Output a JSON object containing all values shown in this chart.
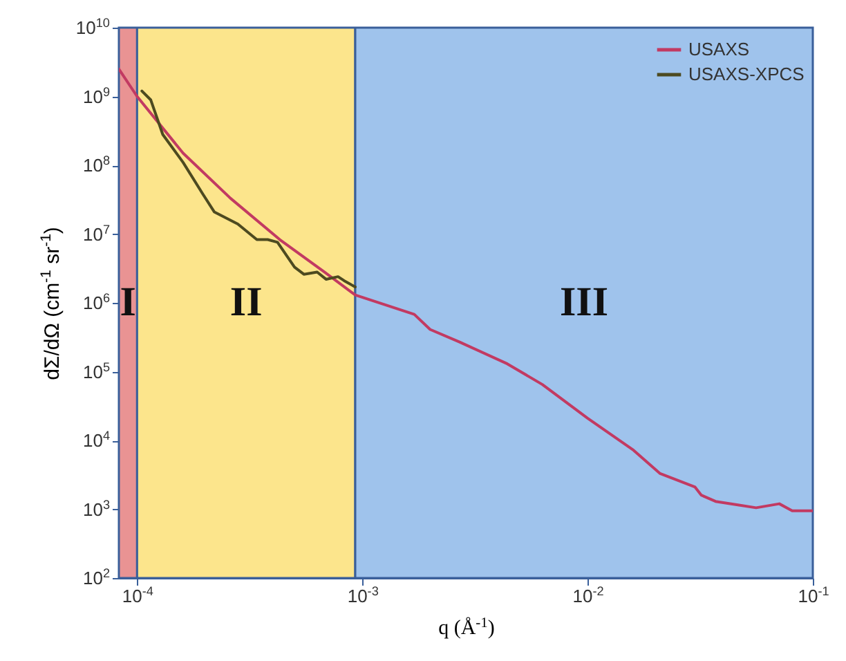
{
  "chart_data": {
    "type": "line",
    "xlabel": "q (Å$^{-1}$)",
    "ylabel": "dΣ/dΩ (cm$^{-1}$ sr$^{-1}$)",
    "log": "xy",
    "xlim": [
      8.3e-05,
      0.1
    ],
    "ylim": [
      100,
      10000000000
    ],
    "xticks": [
      {
        "value": 0.0001,
        "label": "10$^{-4}$"
      },
      {
        "value": 0.001,
        "label": "10$^{-3}$"
      },
      {
        "value": 0.01,
        "label": "10$^{-2}$"
      },
      {
        "value": 0.1,
        "label": "10$^{-1}$"
      }
    ],
    "yticks": [
      {
        "value": 100,
        "label": "10$^{2}$"
      },
      {
        "value": 1000,
        "label": "10$^{3}$"
      },
      {
        "value": 10000,
        "label": "10$^{4}$"
      },
      {
        "value": 100000,
        "label": "10$^{5}$"
      },
      {
        "value": 1000000,
        "label": "10$^{6}$"
      },
      {
        "value": 10000000,
        "label": "10$^{7}$"
      },
      {
        "value": 100000000,
        "label": "10$^{8}$"
      },
      {
        "value": 1000000000,
        "label": "10$^{9}$"
      },
      {
        "value": 10000000000,
        "label": "10$^{10}$"
      }
    ],
    "grid": false,
    "legend": "top right",
    "bands": [
      {
        "axis": "x",
        "from": 8.3e-05,
        "to": 0.0001,
        "label": "I",
        "color": "#e99393"
      },
      {
        "axis": "x",
        "from": 0.0001,
        "to": 0.00093,
        "label": "II",
        "color": "#fce58c"
      },
      {
        "axis": "x",
        "from": 0.00093,
        "to": 0.1,
        "label": "III",
        "color": "#9fc3ec"
      }
    ],
    "series": [
      {
        "name": "USAXS",
        "color": "#c23a62",
        "x": [
          8.3e-05,
          0.0001,
          0.00016,
          0.00026,
          0.00043,
          0.00068,
          0.00093,
          0.0017,
          0.002,
          0.0027,
          0.0044,
          0.0063,
          0.01,
          0.016,
          0.021,
          0.03,
          0.032,
          0.037,
          0.047,
          0.056,
          0.071,
          0.081,
          0.1
        ],
        "values": [
          2500000000,
          1000000000,
          150000000,
          33000000,
          8300000,
          2800000,
          1300000,
          680000,
          410000,
          270000,
          130000,
          65000,
          21000,
          7200,
          3300,
          2100,
          1600,
          1300,
          1150,
          1050,
          1200,
          950,
          950
        ]
      },
      {
        "name": "USAXS-XPCS",
        "color": "#4d4a20",
        "x": [
          0.000105,
          0.000115,
          0.00013,
          0.00016,
          0.000195,
          0.00022,
          0.00028,
          0.00034,
          0.00038,
          0.00042,
          0.0005,
          0.00055,
          0.00063,
          0.00069,
          0.00078,
          0.00083,
          0.00093
        ],
        "values": [
          1200000000,
          890000000,
          280000000,
          110000000,
          39000000,
          21000000,
          14000000,
          8300000,
          8300000,
          7600000,
          3300000,
          2600000,
          2800000,
          2200000,
          2400000,
          2100000,
          1700000
        ]
      }
    ]
  }
}
